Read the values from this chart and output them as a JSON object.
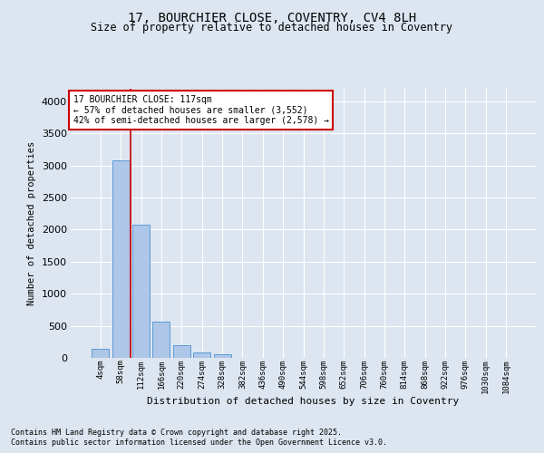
{
  "title_line1": "17, BOURCHIER CLOSE, COVENTRY, CV4 8LH",
  "title_line2": "Size of property relative to detached houses in Coventry",
  "xlabel": "Distribution of detached houses by size in Coventry",
  "ylabel": "Number of detached properties",
  "bar_labels": [
    "4sqm",
    "58sqm",
    "112sqm",
    "166sqm",
    "220sqm",
    "274sqm",
    "328sqm",
    "382sqm",
    "436sqm",
    "490sqm",
    "544sqm",
    "598sqm",
    "652sqm",
    "706sqm",
    "760sqm",
    "814sqm",
    "868sqm",
    "922sqm",
    "976sqm",
    "1030sqm",
    "1084sqm"
  ],
  "bar_values": [
    140,
    3080,
    2080,
    560,
    200,
    80,
    55,
    0,
    0,
    0,
    0,
    0,
    0,
    0,
    0,
    0,
    0,
    0,
    0,
    0,
    0
  ],
  "bar_color": "#aec6e8",
  "bar_edge_color": "#5b9bd5",
  "annotation_box_text": "17 BOURCHIER CLOSE: 117sqm\n← 57% of detached houses are smaller (3,552)\n42% of semi-detached houses are larger (2,578) →",
  "annotation_box_color": "#ffffff",
  "annotation_box_edge_color": "#cc0000",
  "vline_x": 1.5,
  "vline_color": "#cc0000",
  "ylim": [
    0,
    4200
  ],
  "yticks": [
    0,
    500,
    1000,
    1500,
    2000,
    2500,
    3000,
    3500,
    4000
  ],
  "bg_color": "#dde5f0",
  "plot_bg_color": "#dde5f0",
  "grid_color": "#ffffff",
  "footer_line1": "Contains HM Land Registry data © Crown copyright and database right 2025.",
  "footer_line2": "Contains public sector information licensed under the Open Government Licence v3.0.",
  "title_fontsize1": 10,
  "title_fontsize2": 8.5,
  "ylabel_fontsize": 7.5,
  "xlabel_fontsize": 8,
  "ytick_fontsize": 8,
  "xtick_fontsize": 6.5,
  "annot_fontsize": 7,
  "footer_fontsize": 6
}
